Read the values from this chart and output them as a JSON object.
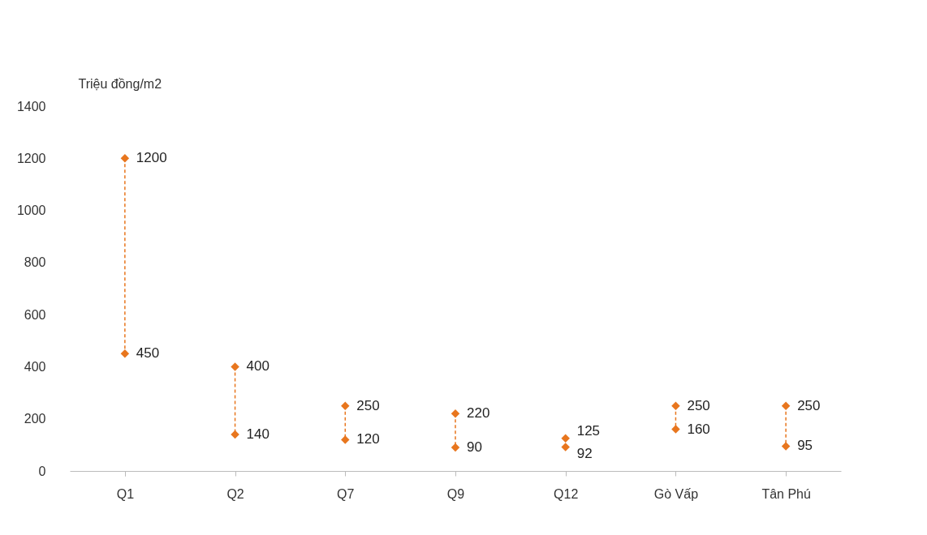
{
  "chart_data": {
    "type": "scatter",
    "ylabel": "Triệu đồng/m2",
    "categories": [
      "Q1",
      "Q2",
      "Q7",
      "Q9",
      "Q12",
      "Gò Vấp",
      "Tân Phú"
    ],
    "series": [
      {
        "color": "#e8761e",
        "values": [
          1200,
          400,
          250,
          220,
          125,
          250,
          250
        ]
      },
      {
        "color": "#e8761e",
        "values": [
          450,
          140,
          120,
          90,
          92,
          160,
          95
        ]
      }
    ],
    "ylim": [
      0,
      1400
    ],
    "yticks": [
      0,
      200,
      400,
      600,
      800,
      1000,
      1200,
      1400
    ],
    "marker": "diamond",
    "line_style": "dashed",
    "data_labels": true,
    "grid": false
  }
}
